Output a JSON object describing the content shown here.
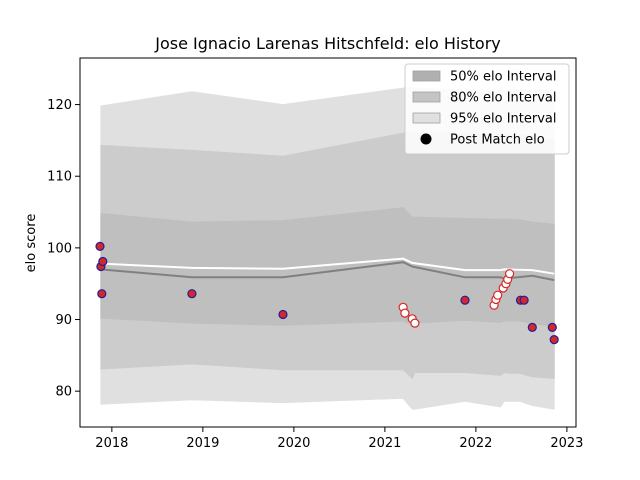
{
  "chart_data": {
    "type": "line",
    "title": "Jose Ignacio Larenas Hitschfeld: elo History",
    "xlabel": "",
    "ylabel": "elo score",
    "xlim": [
      2017.65,
      2023.1
    ],
    "ylim": [
      75.0,
      126.5
    ],
    "x_ticks": [
      2018,
      2019,
      2020,
      2021,
      2022,
      2023
    ],
    "x_tick_labels": [
      "2018",
      "2019",
      "2020",
      "2021",
      "2022",
      "2023"
    ],
    "y_ticks": [
      80,
      90,
      100,
      110,
      120
    ],
    "y_tick_labels": [
      "80",
      "90",
      "100",
      "110",
      "120"
    ],
    "grid": false,
    "legend_position": "top-right",
    "legend": [
      {
        "label": "50% elo Interval",
        "kind": "patch",
        "color": "#b0b0b0"
      },
      {
        "label": "80% elo Interval",
        "kind": "patch",
        "color": "#c4c4c4"
      },
      {
        "label": "95% elo Interval",
        "kind": "patch",
        "color": "#e0e0e0"
      },
      {
        "label": "Post Match elo",
        "kind": "marker",
        "color": "#000000"
      }
    ],
    "band_x": [
      2017.88,
      2018.88,
      2019.88,
      2021.2,
      2021.3,
      2021.33,
      2021.88,
      2022.27,
      2022.31,
      2022.36,
      2022.48,
      2022.62,
      2022.86
    ],
    "bands": [
      {
        "name": "95% elo Interval",
        "color": "#e0e0e0",
        "upper": [
          119.8,
          121.8,
          120.0,
          122.3,
          122.4,
          122.3,
          122.0,
          122.0,
          122.0,
          122.0,
          122.0,
          122.0,
          122.0
        ],
        "lower": [
          78.2,
          78.8,
          78.4,
          79.0,
          77.5,
          77.5,
          78.6,
          77.8,
          78.6,
          78.6,
          78.6,
          78.0,
          77.5
        ]
      },
      {
        "name": "80% elo Interval",
        "color": "#cccccc",
        "upper": [
          114.3,
          113.6,
          112.8,
          116.0,
          116.0,
          116.0,
          116.0,
          115.8,
          116.0,
          115.8,
          115.8,
          115.5,
          115.0
        ],
        "lower": [
          83.1,
          83.8,
          83.0,
          83.0,
          81.8,
          82.6,
          82.6,
          82.2,
          82.6,
          82.5,
          82.5,
          82.0,
          81.8
        ]
      },
      {
        "name": "50% elo Interval",
        "color": "#bfbfbf",
        "upper": [
          104.8,
          103.6,
          103.8,
          105.6,
          104.3,
          104.3,
          104.1,
          104.0,
          104.0,
          104.0,
          103.9,
          103.6,
          103.3
        ],
        "lower": [
          90.2,
          89.5,
          89.2,
          89.8,
          89.2,
          89.5,
          89.9,
          89.6,
          89.8,
          89.8,
          89.8,
          89.4,
          89.1
        ]
      }
    ],
    "series": [
      {
        "name": "",
        "color": "#808080",
        "x": [
          2017.88,
          2018.88,
          2019.88,
          2021.2,
          2021.3,
          2021.88,
          2022.27,
          2022.31,
          2022.62,
          2022.86
        ],
        "y": [
          97.0,
          95.9,
          95.9,
          98.0,
          97.4,
          95.9,
          95.9,
          95.7,
          96.1,
          95.5
        ]
      },
      {
        "name": "",
        "color": "#ffffff",
        "x": [
          2017.88,
          2018.88,
          2019.88,
          2021.2,
          2021.3,
          2021.88,
          2022.27,
          2022.31,
          2022.62,
          2022.86
        ],
        "y": [
          97.8,
          97.2,
          97.1,
          98.5,
          97.9,
          96.9,
          96.9,
          97.0,
          96.9,
          96.4
        ]
      }
    ],
    "points": [
      {
        "x": 2017.87,
        "y": 100.2,
        "edge": "#000080"
      },
      {
        "x": 2017.88,
        "y": 97.4,
        "edge": "#000080"
      },
      {
        "x": 2017.9,
        "y": 98.1,
        "edge": "#000080"
      },
      {
        "x": 2017.89,
        "y": 93.6,
        "edge": "#000080"
      },
      {
        "x": 2018.88,
        "y": 93.6,
        "edge": "#000080"
      },
      {
        "x": 2019.88,
        "y": 90.7,
        "edge": "#000080"
      },
      {
        "x": 2021.2,
        "y": 91.7,
        "edge": "#d62728"
      },
      {
        "x": 2021.22,
        "y": 90.9,
        "edge": "#d62728"
      },
      {
        "x": 2021.3,
        "y": 90.1,
        "edge": "#d62728"
      },
      {
        "x": 2021.33,
        "y": 89.5,
        "edge": "#d62728"
      },
      {
        "x": 2021.88,
        "y": 92.7,
        "edge": "#000080"
      },
      {
        "x": 2022.2,
        "y": 92.0,
        "edge": "#d62728"
      },
      {
        "x": 2022.22,
        "y": 92.8,
        "edge": "#d62728"
      },
      {
        "x": 2022.24,
        "y": 93.4,
        "edge": "#d62728"
      },
      {
        "x": 2022.3,
        "y": 94.4,
        "edge": "#d62728"
      },
      {
        "x": 2022.33,
        "y": 95.0,
        "edge": "#d62728"
      },
      {
        "x": 2022.35,
        "y": 95.6,
        "edge": "#d62728"
      },
      {
        "x": 2022.37,
        "y": 96.4,
        "edge": "#d62728"
      },
      {
        "x": 2022.49,
        "y": 92.7,
        "edge": "#000080"
      },
      {
        "x": 2022.53,
        "y": 92.7,
        "edge": "#000080"
      },
      {
        "x": 2022.62,
        "y": 88.9,
        "edge": "#000080"
      },
      {
        "x": 2022.84,
        "y": 88.9,
        "edge": "#000080"
      },
      {
        "x": 2022.86,
        "y": 87.2,
        "edge": "#000080"
      }
    ]
  }
}
